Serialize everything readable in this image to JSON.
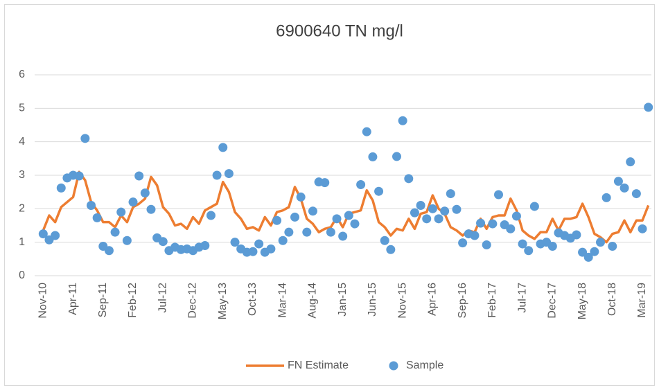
{
  "chart_data": {
    "type": "line",
    "title": "6900640 TN mg/l",
    "categories": [
      "Nov-10",
      null,
      null,
      null,
      null,
      "Apr-11",
      null,
      null,
      null,
      null,
      "Sep-11",
      null,
      null,
      null,
      null,
      "Feb-12",
      null,
      null,
      null,
      null,
      "Jul-12",
      null,
      null,
      null,
      null,
      "Dec-12",
      null,
      null,
      null,
      null,
      "May-13",
      null,
      null,
      null,
      null,
      "Oct-13",
      null,
      null,
      null,
      null,
      "Mar-14",
      null,
      null,
      null,
      null,
      "Aug-14",
      null,
      null,
      null,
      null,
      "Jan-15",
      null,
      null,
      null,
      null,
      "Jun-15",
      null,
      null,
      null,
      null,
      "Nov-15",
      null,
      null,
      null,
      null,
      "Apr-16",
      null,
      null,
      null,
      null,
      "Sep-16",
      null,
      null,
      null,
      null,
      "Feb-17",
      null,
      null,
      null,
      null,
      "Jul-17",
      null,
      null,
      null,
      null,
      "Dec-17",
      null,
      null,
      null,
      null,
      "May-18",
      null,
      null,
      null,
      null,
      "Oct-18",
      null,
      null,
      null,
      null,
      "Mar-19",
      null
    ],
    "series": [
      {
        "name": "FN Estimate",
        "type": "line",
        "color": "#ED7D31",
        "values": [
          1.35,
          1.8,
          1.6,
          2.05,
          2.2,
          2.35,
          3.1,
          2.85,
          2.2,
          1.95,
          1.6,
          1.6,
          1.45,
          1.8,
          1.6,
          2.05,
          2.15,
          2.3,
          2.95,
          2.7,
          2.05,
          1.85,
          1.5,
          1.55,
          1.4,
          1.75,
          1.55,
          1.95,
          2.05,
          2.15,
          2.8,
          2.5,
          1.9,
          1.7,
          1.4,
          1.45,
          1.35,
          1.75,
          1.5,
          1.9,
          1.95,
          2.05,
          2.65,
          2.3,
          1.7,
          1.55,
          1.3,
          1.4,
          1.45,
          1.75,
          1.45,
          1.85,
          1.9,
          1.95,
          2.55,
          2.25,
          1.6,
          1.45,
          1.2,
          1.4,
          1.35,
          1.7,
          1.4,
          1.85,
          1.9,
          2.4,
          2.0,
          1.85,
          1.45,
          1.35,
          1.2,
          1.35,
          1.3,
          1.7,
          1.4,
          1.75,
          1.8,
          1.8,
          2.3,
          1.95,
          1.35,
          1.2,
          1.1,
          1.3,
          1.3,
          1.7,
          1.35,
          1.7,
          1.7,
          1.75,
          2.15,
          1.75,
          1.25,
          1.15,
          1.0,
          1.25,
          1.3,
          1.65,
          1.3,
          1.65,
          1.65,
          2.1
        ]
      },
      {
        "name": "Sample",
        "type": "scatter",
        "color": "#5B9BD5",
        "values": [
          1.25,
          1.07,
          1.2,
          2.62,
          2.92,
          3.0,
          2.98,
          4.1,
          2.1,
          1.73,
          0.88,
          0.75,
          1.3,
          1.9,
          1.05,
          2.2,
          2.98,
          2.47,
          1.98,
          1.13,
          1.02,
          0.75,
          0.85,
          0.78,
          0.8,
          0.75,
          0.85,
          0.9,
          1.8,
          3.0,
          3.83,
          3.05,
          1.0,
          0.8,
          0.7,
          0.72,
          0.95,
          0.7,
          0.8,
          1.65,
          1.05,
          1.3,
          1.75,
          2.35,
          1.3,
          1.93,
          2.8,
          2.78,
          1.3,
          1.7,
          1.18,
          1.8,
          1.55,
          2.72,
          4.3,
          3.55,
          2.52,
          1.05,
          0.78,
          3.56,
          4.63,
          2.9,
          1.88,
          2.1,
          1.7,
          2.0,
          1.7,
          1.93,
          2.45,
          1.98,
          0.98,
          1.25,
          1.2,
          1.57,
          0.92,
          1.55,
          2.42,
          1.52,
          1.4,
          1.78,
          0.95,
          0.75,
          2.07,
          0.95,
          1.0,
          0.88,
          1.28,
          1.2,
          1.12,
          1.22,
          0.7,
          0.55,
          0.72,
          1.0,
          2.33,
          0.88,
          2.82,
          2.62,
          3.4,
          2.45,
          1.4,
          5.03
        ]
      }
    ],
    "ylim": [
      0,
      6
    ],
    "yticks": [
      0,
      1,
      2,
      3,
      4,
      5,
      6
    ],
    "grid": true,
    "legend": "bottom"
  }
}
